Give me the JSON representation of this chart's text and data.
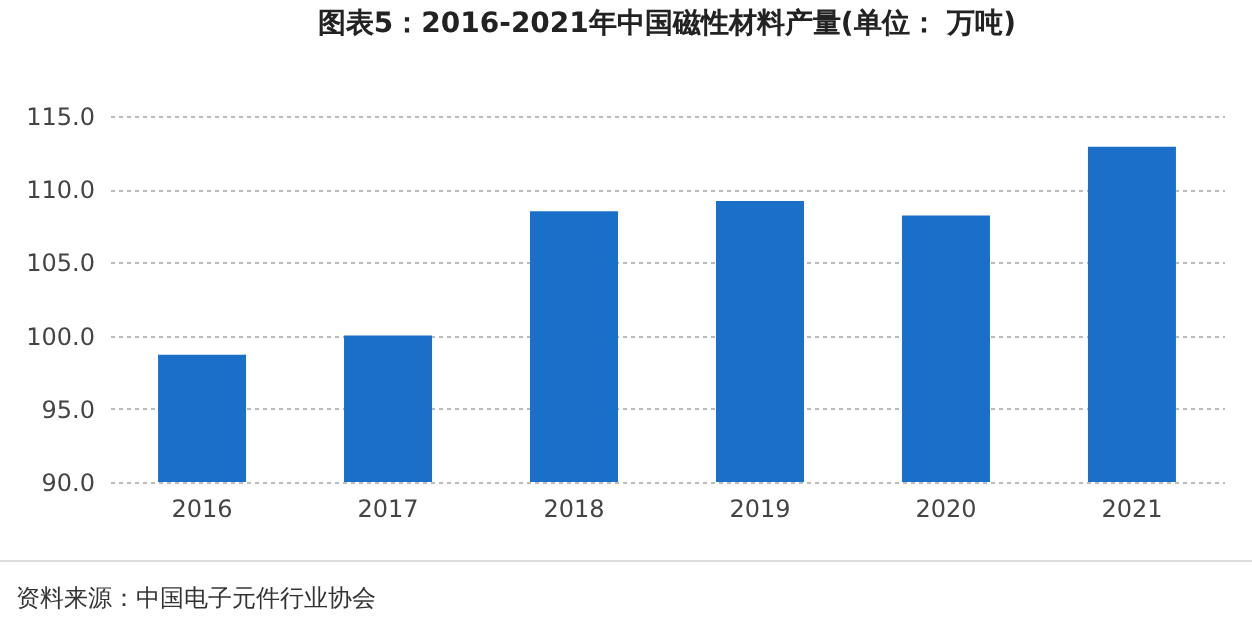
{
  "chart_data": {
    "type": "bar",
    "title": "图表5：2016-2021年中国磁性材料产量(单位： 万吨)",
    "categories": [
      "2016",
      "2017",
      "2018",
      "2019",
      "2020",
      "2021"
    ],
    "values": [
      98.7,
      100.0,
      108.5,
      109.2,
      108.2,
      112.9
    ],
    "color": "#1a6fc9",
    "ylim": [
      90,
      115
    ],
    "yticks": [
      {
        "value": 90,
        "label": "90.0"
      },
      {
        "value": 95,
        "label": "95.0"
      },
      {
        "value": 100,
        "label": "100.0"
      },
      {
        "value": 105,
        "label": "105.0"
      },
      {
        "value": 110,
        "label": "110.0"
      },
      {
        "value": 115,
        "label": "115.0"
      }
    ],
    "grid": "y",
    "annotations": [
      "资料来源：中国电子元件行业协会"
    ]
  }
}
